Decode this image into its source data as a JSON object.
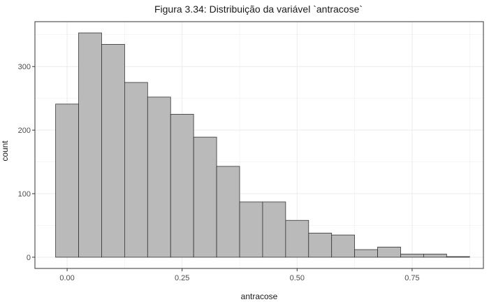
{
  "chart_data": {
    "type": "bar",
    "title": "Figura 3.34: Distribuição da variável `antracose`",
    "xlabel": "antracose",
    "ylabel": "count",
    "bin_width": 0.05,
    "bins": [
      {
        "x": 0.0,
        "count": 241
      },
      {
        "x": 0.05,
        "count": 353
      },
      {
        "x": 0.1,
        "count": 335
      },
      {
        "x": 0.15,
        "count": 275
      },
      {
        "x": 0.2,
        "count": 252
      },
      {
        "x": 0.25,
        "count": 225
      },
      {
        "x": 0.3,
        "count": 189
      },
      {
        "x": 0.35,
        "count": 143
      },
      {
        "x": 0.4,
        "count": 87
      },
      {
        "x": 0.45,
        "count": 87
      },
      {
        "x": 0.5,
        "count": 58
      },
      {
        "x": 0.55,
        "count": 38
      },
      {
        "x": 0.6,
        "count": 35
      },
      {
        "x": 0.65,
        "count": 12
      },
      {
        "x": 0.7,
        "count": 16
      },
      {
        "x": 0.75,
        "count": 5
      },
      {
        "x": 0.8,
        "count": 5
      },
      {
        "x": 0.85,
        "count": 1
      }
    ],
    "xlim": [
      -0.07,
      0.905
    ],
    "ylim": [
      -17.65,
      370.65
    ],
    "x_ticks": [
      0.0,
      0.25,
      0.5,
      0.75
    ],
    "x_tick_labels": [
      "0.00",
      "0.25",
      "0.50",
      "0.75"
    ],
    "y_ticks": [
      0,
      100,
      200,
      300
    ],
    "y_tick_labels": [
      "0",
      "100",
      "200",
      "300"
    ],
    "grid": true,
    "colors": {
      "bar_fill": "#bababa",
      "bar_stroke": "#333333",
      "grid": "#ebebeb",
      "panel_border": "#333333"
    }
  }
}
